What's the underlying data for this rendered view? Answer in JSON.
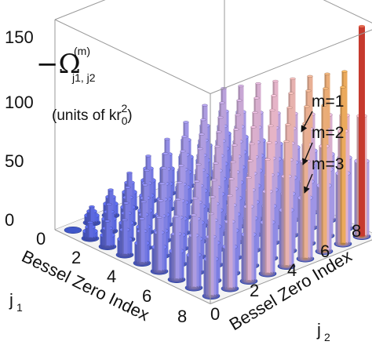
{
  "chart_data": {
    "type": "bar3d",
    "z_label": {
      "symbol": "−Ω",
      "superscript": "(m)",
      "subscript": "j1, j2",
      "units_prefix": "(units of kr",
      "units_sub": "0",
      "units_sup": "2",
      "units_suffix": ")"
    },
    "x_label": {
      "text": "Bessel Zero Index",
      "symbol": "j",
      "sub": "1"
    },
    "y_label": {
      "text": "Bessel Zero Index",
      "symbol": "j",
      "sub": "2"
    },
    "z_ticks": [
      "0",
      "50",
      "100",
      "150"
    ],
    "x_ticks": [
      "0",
      "2",
      "4",
      "6",
      "8"
    ],
    "y_ticks": [
      "0",
      "2",
      "4",
      "6",
      "8"
    ],
    "zlim": [
      0,
      160
    ],
    "grid": false,
    "series": [
      {
        "name": "m=1",
        "color": "#f4a6a0"
      },
      {
        "name": "m=2",
        "color": "#c7b7e8"
      },
      {
        "name": "m=3",
        "color": "#6f7fdc"
      }
    ],
    "peak_value": 160,
    "notes": [
      "m=1",
      "m=2",
      "m=3"
    ]
  }
}
